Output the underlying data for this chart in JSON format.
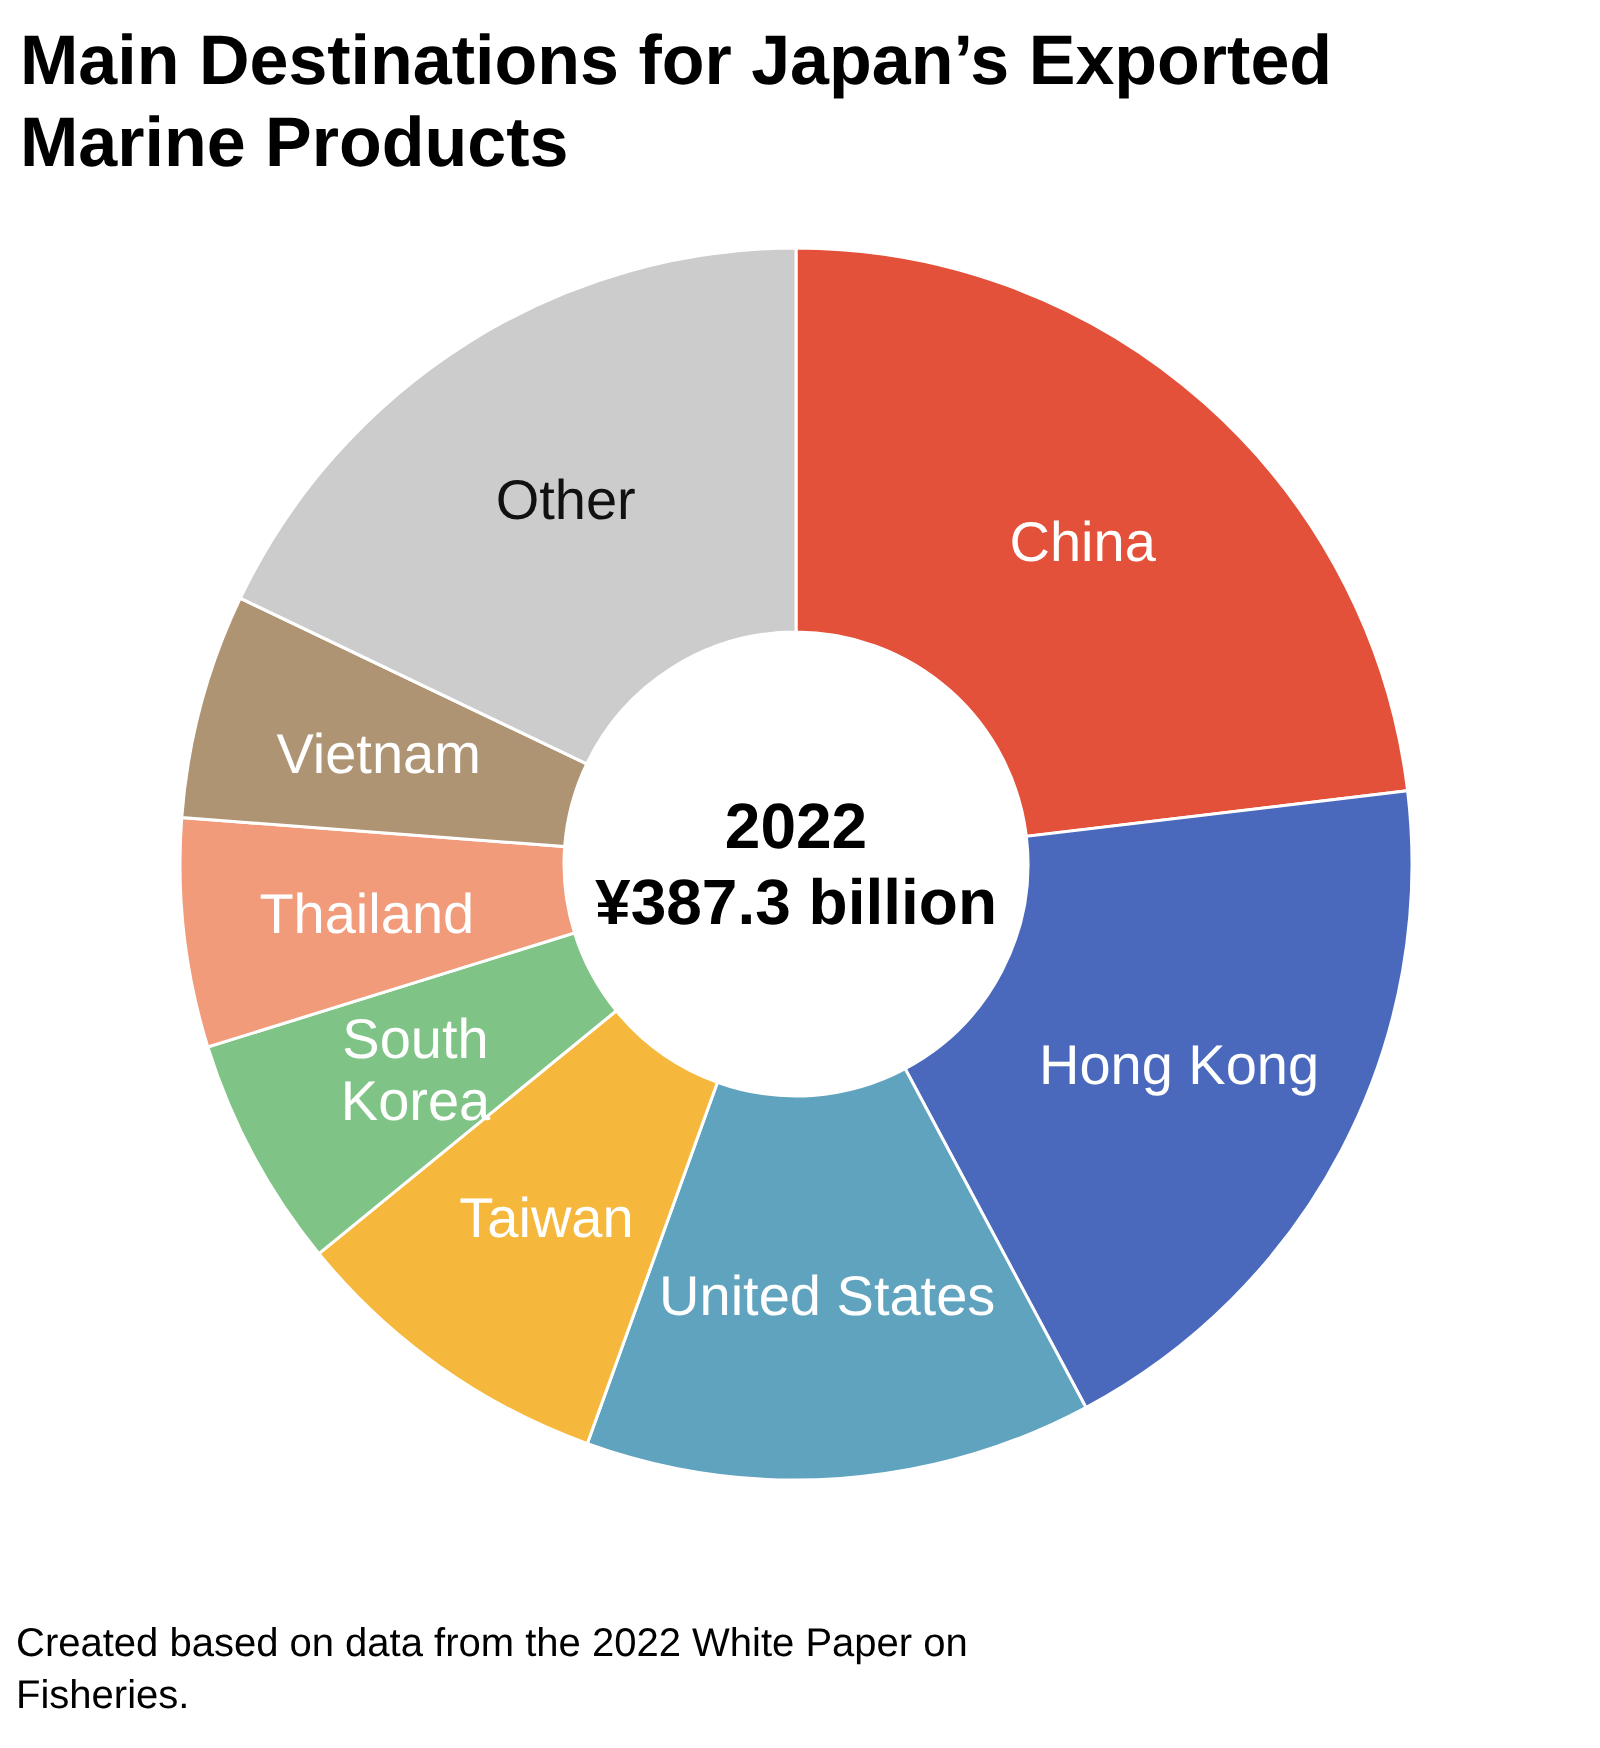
{
  "chart_data": {
    "type": "donut",
    "title": "Main Destinations for Japan’s Exported Marine Products",
    "categories": [
      "China",
      "Hong Kong",
      "United States",
      "Taiwan",
      "South Korea",
      "Thailand",
      "Vietnam",
      "Other"
    ],
    "values": [
      23.1,
      19.1,
      13.3,
      8.6,
      6.1,
      6.0,
      5.9,
      17.9
    ],
    "colors": [
      "#e4513a",
      "#4a69bd",
      "#5fa3bf",
      "#f5b83d",
      "#7fc486",
      "#f19b7a",
      "#ae9473",
      "#cccccc"
    ],
    "annotations": [
      "2022",
      "¥387.3 billion",
      "Created based on data from the 2022 White Paper on Fisheries."
    ]
  }
}
